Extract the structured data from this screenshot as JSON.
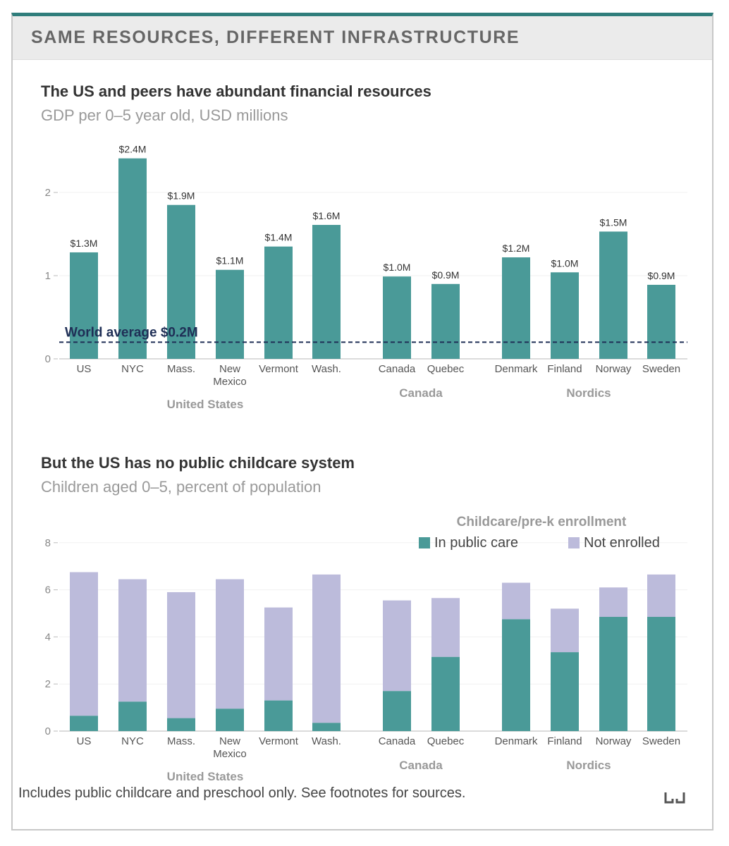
{
  "header": {
    "title": "SAME RESOURCES, DIFFERENT INFRASTRUCTURE"
  },
  "chart1": {
    "title": "The US and peers have abundant financial resources",
    "subtitle": "GDP per 0–5 year old, USD millions",
    "reference_label": "World average $0.2M"
  },
  "chart2": {
    "title": "But the US has no public childcare system",
    "subtitle": "Children aged 0–5, percent of population",
    "legend_title": "Childcare/pre-k enrollment"
  },
  "footer": {
    "note": "Includes public childcare and preschool only. See footnotes for sources."
  },
  "colors": {
    "teal": "#4a9a98",
    "lavender": "#bcbbdb",
    "reference": "#1f2f56",
    "accent": "#2f7d7b"
  },
  "chart_data": [
    {
      "type": "bar",
      "title": "The US and peers have abundant financial resources",
      "subtitle": "GDP per 0–5 year old, USD millions",
      "xlabel": "",
      "ylabel": "",
      "ylim": [
        0,
        2.5
      ],
      "yticks": [
        "0",
        "1",
        "2"
      ],
      "ytick_values": [
        0,
        1,
        2
      ],
      "grid": true,
      "groups": [
        {
          "name": "United States",
          "categories": [
            "US",
            "NYC",
            "Mass.",
            "New Mexico",
            "Vermont",
            "Wash."
          ]
        },
        {
          "name": "Canada",
          "categories": [
            "Canada",
            "Quebec"
          ]
        },
        {
          "name": "Nordics",
          "categories": [
            "Denmark",
            "Finland",
            "Norway",
            "Sweden"
          ]
        }
      ],
      "categories": [
        "US",
        "NYC",
        "Mass.",
        "New Mexico",
        "Vermont",
        "Wash.",
        "Canada",
        "Quebec",
        "Denmark",
        "Finland",
        "Norway",
        "Sweden"
      ],
      "values": [
        1.28,
        2.41,
        1.85,
        1.07,
        1.35,
        1.61,
        0.99,
        0.9,
        1.22,
        1.04,
        1.53,
        0.89
      ],
      "labels": [
        "$1.3M",
        "$2.4M",
        "$1.9M",
        "$1.1M",
        "$1.4M",
        "$1.6M",
        "$1.0M",
        "$0.9M",
        "$1.2M",
        "$1.0M",
        "$1.5M",
        "$0.9M"
      ],
      "reference_line": {
        "value": 0.2,
        "label": "World average $0.2M"
      }
    },
    {
      "type": "bar",
      "stacked": true,
      "title": "But the US has no public childcare system",
      "subtitle": "Children aged 0–5, percent of population",
      "xlabel": "",
      "ylabel": "",
      "ylim": [
        0,
        8.2
      ],
      "yticks": [
        "0",
        "2",
        "4",
        "6",
        "8"
      ],
      "ytick_values": [
        0,
        2,
        4,
        6,
        8
      ],
      "grid": true,
      "legend": {
        "title": "Childcare/pre-k enrollment",
        "position": "top-right"
      },
      "groups": [
        {
          "name": "United States",
          "categories": [
            "US",
            "NYC",
            "Mass.",
            "New Mexico",
            "Vermont",
            "Wash."
          ]
        },
        {
          "name": "Canada",
          "categories": [
            "Canada",
            "Quebec"
          ]
        },
        {
          "name": "Nordics",
          "categories": [
            "Denmark",
            "Finland",
            "Norway",
            "Sweden"
          ]
        }
      ],
      "categories": [
        "US",
        "NYC",
        "Mass.",
        "New Mexico",
        "Vermont",
        "Wash.",
        "Canada",
        "Quebec",
        "Denmark",
        "Finland",
        "Norway",
        "Sweden"
      ],
      "series": [
        {
          "name": "In public care",
          "values": [
            0.65,
            1.25,
            0.55,
            0.95,
            1.3,
            0.35,
            1.7,
            3.15,
            4.75,
            3.35,
            4.85,
            4.85
          ]
        },
        {
          "name": "Not enrolled",
          "values": [
            6.1,
            5.2,
            5.35,
            5.5,
            3.95,
            6.3,
            3.85,
            2.5,
            1.55,
            1.85,
            1.25,
            1.8
          ]
        }
      ]
    }
  ]
}
